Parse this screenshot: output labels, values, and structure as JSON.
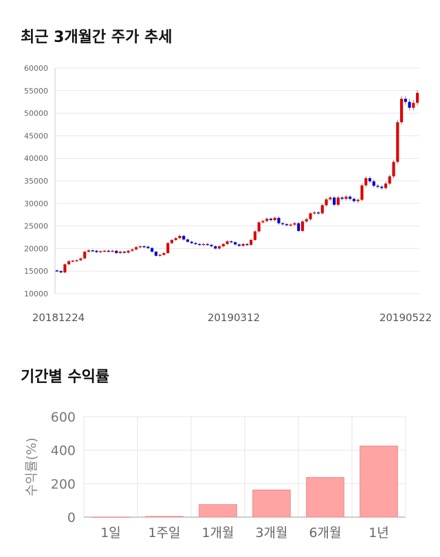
{
  "sections": {
    "price_title": "최근 3개월간 주가 추세",
    "return_title": "기간별 수익률"
  },
  "colors": {
    "up": "#dd0000",
    "down": "#0000cc",
    "bar": "#ffa3a3",
    "bar_border": "#e58a8a",
    "grid": "#e6e6e6"
  },
  "chart_data": [
    {
      "type": "candlestick",
      "title": "최근 3개월간 주가 추세",
      "ylim": [
        10000,
        60000
      ],
      "yticks": [
        10000,
        15000,
        20000,
        25000,
        30000,
        35000,
        40000,
        45000,
        50000,
        55000,
        60000
      ],
      "x_labels": [
        "20181224",
        "20190312",
        "20190522"
      ],
      "grid": true,
      "closes": [
        15000,
        14700,
        16500,
        17200,
        17300,
        17400,
        17800,
        19300,
        19600,
        19500,
        19200,
        19400,
        19500,
        19400,
        19500,
        19000,
        19300,
        19100,
        19500,
        19800,
        20300,
        20500,
        20400,
        20100,
        19300,
        18400,
        18600,
        19000,
        21200,
        21900,
        22300,
        22800,
        22000,
        21500,
        21200,
        21000,
        20800,
        21000,
        20800,
        20500,
        20000,
        20500,
        21000,
        21600,
        21400,
        20900,
        20600,
        21000,
        20800,
        21900,
        23800,
        25800,
        26100,
        26600,
        26300,
        26800,
        25600,
        25400,
        25200,
        25300,
        25600,
        23900,
        26000,
        26500,
        27800,
        28000,
        27800,
        29600,
        30900,
        31300,
        29700,
        31300,
        31000,
        31500,
        31000,
        30500,
        30800,
        34000,
        35600,
        34900,
        33900,
        33700,
        33400,
        34400,
        36000,
        39200,
        48000,
        53200,
        52500,
        51200,
        52300,
        54500
      ]
    },
    {
      "type": "bar",
      "title": "기간별 수익률",
      "ylabel": "수익률(%)",
      "ylim": [
        0,
        600
      ],
      "yticks": [
        0,
        200,
        400,
        600
      ],
      "categories": [
        "1일",
        "1주일",
        "1개월",
        "3개월",
        "6개월",
        "1년"
      ],
      "values": [
        0.5,
        4,
        75,
        162,
        237,
        425
      ],
      "grid": true
    }
  ]
}
